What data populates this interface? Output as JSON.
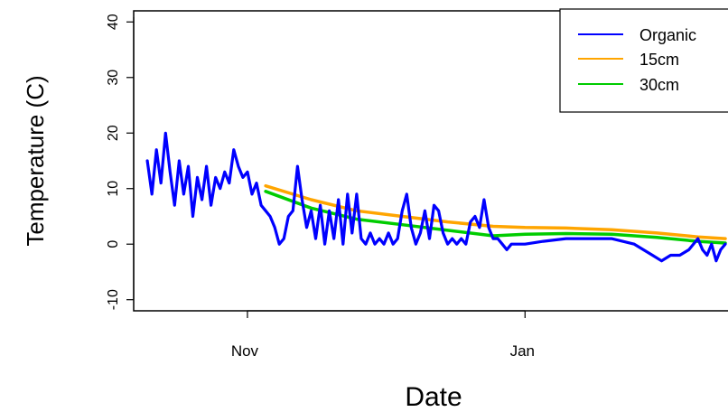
{
  "chart_data": {
    "type": "line",
    "title": "",
    "xlabel": "Date",
    "ylabel": "Temperature (C)",
    "xlim": [
      "2013-10-07",
      "2014-02-15"
    ],
    "ylim": [
      -12,
      42
    ],
    "x_ticks": [
      {
        "label": "Nov",
        "date": "2013-11-01"
      },
      {
        "label": "Jan",
        "date": "2014-01-01"
      }
    ],
    "y_ticks": [
      -10,
      0,
      10,
      20,
      30,
      40
    ],
    "grid": false,
    "legend": {
      "position": "top-right",
      "entries": [
        {
          "name": "Organic",
          "color": "#0000ff"
        },
        {
          "name": "15cm",
          "color": "#ffa500"
        },
        {
          "name": "30cm",
          "color": "#00cc00"
        }
      ]
    },
    "series": [
      {
        "name": "30cm",
        "color": "#00cc00",
        "points": [
          [
            "2013-11-05",
            9.5
          ],
          [
            "2013-11-15",
            6.5
          ],
          [
            "2013-11-25",
            4.5
          ],
          [
            "2013-12-05",
            3.5
          ],
          [
            "2013-12-15",
            2.5
          ],
          [
            "2013-12-25",
            1.5
          ],
          [
            "2014-01-01",
            1.8
          ],
          [
            "2014-01-10",
            1.9
          ],
          [
            "2014-01-20",
            1.8
          ],
          [
            "2014-01-30",
            1.2
          ],
          [
            "2014-02-08",
            0.5
          ],
          [
            "2014-02-14",
            0.2
          ]
        ]
      },
      {
        "name": "15cm",
        "color": "#ffa500",
        "points": [
          [
            "2013-11-05",
            10.5
          ],
          [
            "2013-11-15",
            8.0
          ],
          [
            "2013-11-25",
            6.0
          ],
          [
            "2013-12-05",
            5.0
          ],
          [
            "2013-12-15",
            4.0
          ],
          [
            "2013-12-25",
            3.2
          ],
          [
            "2014-01-01",
            3.0
          ],
          [
            "2014-01-10",
            2.9
          ],
          [
            "2014-01-20",
            2.6
          ],
          [
            "2014-01-30",
            2.0
          ],
          [
            "2014-02-08",
            1.3
          ],
          [
            "2014-02-14",
            1.0
          ]
        ]
      },
      {
        "name": "Organic",
        "color": "#0000ff",
        "points": [
          [
            "2013-10-10",
            15
          ],
          [
            "2013-10-11",
            9
          ],
          [
            "2013-10-12",
            17
          ],
          [
            "2013-10-13",
            11
          ],
          [
            "2013-10-14",
            20
          ],
          [
            "2013-10-15",
            13
          ],
          [
            "2013-10-16",
            7
          ],
          [
            "2013-10-17",
            15
          ],
          [
            "2013-10-18",
            9
          ],
          [
            "2013-10-19",
            14
          ],
          [
            "2013-10-20",
            5
          ],
          [
            "2013-10-21",
            12
          ],
          [
            "2013-10-22",
            8
          ],
          [
            "2013-10-23",
            14
          ],
          [
            "2013-10-24",
            7
          ],
          [
            "2013-10-25",
            12
          ],
          [
            "2013-10-26",
            10
          ],
          [
            "2013-10-27",
            13
          ],
          [
            "2013-10-28",
            11
          ],
          [
            "2013-10-29",
            17
          ],
          [
            "2013-10-30",
            14
          ],
          [
            "2013-10-31",
            12
          ],
          [
            "2013-11-01",
            13
          ],
          [
            "2013-11-02",
            9
          ],
          [
            "2013-11-03",
            11
          ],
          [
            "2013-11-04",
            7
          ],
          [
            "2013-11-05",
            6
          ],
          [
            "2013-11-06",
            5
          ],
          [
            "2013-11-07",
            3
          ],
          [
            "2013-11-08",
            0
          ],
          [
            "2013-11-09",
            1
          ],
          [
            "2013-11-10",
            5
          ],
          [
            "2013-11-11",
            6
          ],
          [
            "2013-11-12",
            14
          ],
          [
            "2013-11-13",
            8
          ],
          [
            "2013-11-14",
            3
          ],
          [
            "2013-11-15",
            6
          ],
          [
            "2013-11-16",
            1
          ],
          [
            "2013-11-17",
            7
          ],
          [
            "2013-11-18",
            0
          ],
          [
            "2013-11-19",
            6
          ],
          [
            "2013-11-20",
            1
          ],
          [
            "2013-11-21",
            8
          ],
          [
            "2013-11-22",
            0
          ],
          [
            "2013-11-23",
            9
          ],
          [
            "2013-11-24",
            2
          ],
          [
            "2013-11-25",
            9
          ],
          [
            "2013-11-26",
            1
          ],
          [
            "2013-11-27",
            0
          ],
          [
            "2013-11-28",
            2
          ],
          [
            "2013-11-29",
            0
          ],
          [
            "2013-11-30",
            1
          ],
          [
            "2013-12-01",
            0
          ],
          [
            "2013-12-02",
            2
          ],
          [
            "2013-12-03",
            0
          ],
          [
            "2013-12-04",
            1
          ],
          [
            "2013-12-05",
            6
          ],
          [
            "2013-12-06",
            9
          ],
          [
            "2013-12-07",
            3
          ],
          [
            "2013-12-08",
            0
          ],
          [
            "2013-12-09",
            2
          ],
          [
            "2013-12-10",
            6
          ],
          [
            "2013-12-11",
            1
          ],
          [
            "2013-12-12",
            7
          ],
          [
            "2013-12-13",
            6
          ],
          [
            "2013-12-14",
            2
          ],
          [
            "2013-12-15",
            0
          ],
          [
            "2013-12-16",
            1
          ],
          [
            "2013-12-17",
            0
          ],
          [
            "2013-12-18",
            1
          ],
          [
            "2013-12-19",
            0
          ],
          [
            "2013-12-20",
            4
          ],
          [
            "2013-12-21",
            5
          ],
          [
            "2013-12-22",
            3
          ],
          [
            "2013-12-23",
            8
          ],
          [
            "2013-12-24",
            3
          ],
          [
            "2013-12-25",
            1
          ],
          [
            "2013-12-26",
            1
          ],
          [
            "2013-12-27",
            0
          ],
          [
            "2013-12-28",
            -1
          ],
          [
            "2013-12-29",
            0
          ],
          [
            "2013-12-30",
            0
          ],
          [
            "2013-12-31",
            0
          ],
          [
            "2014-01-01",
            0
          ],
          [
            "2014-01-05",
            0.5
          ],
          [
            "2014-01-10",
            1
          ],
          [
            "2014-01-15",
            1
          ],
          [
            "2014-01-20",
            1
          ],
          [
            "2014-01-25",
            0
          ],
          [
            "2014-01-27",
            -1
          ],
          [
            "2014-01-29",
            -2
          ],
          [
            "2014-01-31",
            -3
          ],
          [
            "2014-02-02",
            -2
          ],
          [
            "2014-02-04",
            -2
          ],
          [
            "2014-02-06",
            -1
          ],
          [
            "2014-02-08",
            1
          ],
          [
            "2014-02-09",
            -1
          ],
          [
            "2014-02-10",
            -2
          ],
          [
            "2014-02-11",
            0
          ],
          [
            "2014-02-12",
            -3
          ],
          [
            "2014-02-13",
            -1
          ],
          [
            "2014-02-14",
            0
          ]
        ]
      }
    ]
  }
}
